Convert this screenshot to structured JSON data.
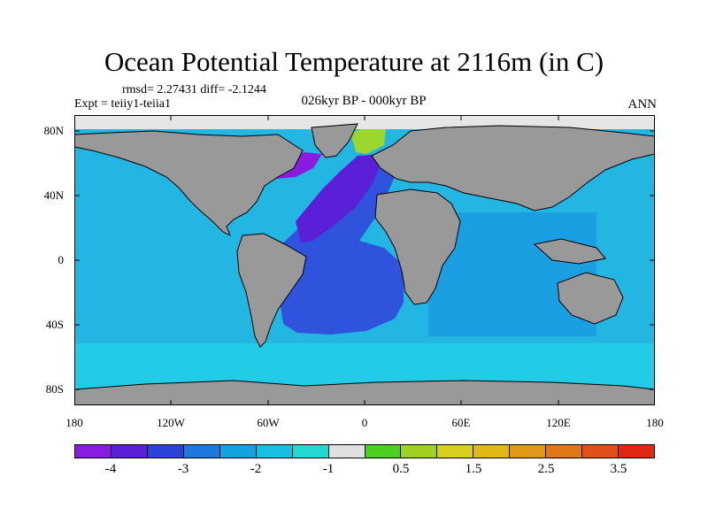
{
  "title": "Ocean Potential Temperature at 2116m (in C)",
  "stats": "rmsd= 2.27431 diff= -2.1244",
  "experiment": "Expt = teiiy1-teiia1",
  "period": "026kyr BP - 000kyr BP",
  "season": "ANN",
  "lat_labels": [
    "80N",
    "40N",
    "0",
    "40S",
    "80S"
  ],
  "lon_labels": [
    "180",
    "120W",
    "60W",
    "0",
    "60E",
    "120E",
    "180"
  ],
  "colorbar": {
    "colors": [
      "#8a1ce0",
      "#5a1fd6",
      "#2c43d8",
      "#1e78e0",
      "#14a2e0",
      "#18bfe0",
      "#22d8d0",
      "#e0e0e0",
      "#4cd020",
      "#a0d020",
      "#d8d020",
      "#e0b818",
      "#e09818",
      "#e07818",
      "#e05018",
      "#e02810"
    ],
    "labels": [
      "-4",
      "-3",
      "-2",
      "-1",
      "0.5",
      "1.5",
      "2.5",
      "3.5"
    ]
  },
  "map_colors": {
    "land": "#999999",
    "ice": "#e6e6e6",
    "pacific": "#23b6e2",
    "southern": "#22cce6",
    "indian": "#1aa0e2",
    "atlantic_deep": "#2f53dc",
    "atlantic_north": "#5a1fd6",
    "atlantic_core": "#8a1ce0",
    "arctic_anomaly": "#9ad830"
  }
}
